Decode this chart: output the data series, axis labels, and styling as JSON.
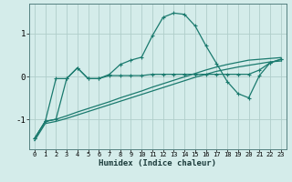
{
  "xlabel": "Humidex (Indice chaleur)",
  "x": [
    0,
    1,
    2,
    3,
    4,
    5,
    6,
    7,
    8,
    9,
    10,
    11,
    12,
    13,
    14,
    15,
    16,
    17,
    18,
    19,
    20,
    21,
    22,
    23
  ],
  "line1_peaked": [
    -1.45,
    -1.05,
    -1.0,
    -0.05,
    0.2,
    -0.05,
    -0.05,
    0.05,
    0.28,
    0.38,
    0.45,
    0.95,
    1.38,
    1.48,
    1.45,
    1.18,
    0.72,
    0.3,
    -0.12,
    -0.4,
    -0.5,
    0.02,
    0.32,
    0.4
  ],
  "line2_flat": [
    -1.45,
    -1.05,
    -0.05,
    -0.05,
    0.2,
    -0.05,
    -0.05,
    0.02,
    0.02,
    0.02,
    0.02,
    0.05,
    0.05,
    0.05,
    0.05,
    0.05,
    0.05,
    0.05,
    0.05,
    0.05,
    0.05,
    0.15,
    0.32,
    0.4
  ],
  "line3_diag1": [
    -1.45,
    -1.05,
    -1.0,
    -0.92,
    -0.83,
    -0.75,
    -0.67,
    -0.59,
    -0.5,
    -0.42,
    -0.34,
    -0.25,
    -0.17,
    -0.09,
    -0.01,
    0.07,
    0.15,
    0.22,
    0.28,
    0.33,
    0.38,
    0.4,
    0.42,
    0.44
  ],
  "line4_diag2": [
    -1.5,
    -1.1,
    -1.05,
    -0.98,
    -0.9,
    -0.82,
    -0.74,
    -0.66,
    -0.58,
    -0.5,
    -0.42,
    -0.34,
    -0.26,
    -0.18,
    -0.1,
    -0.02,
    0.05,
    0.12,
    0.17,
    0.22,
    0.26,
    0.3,
    0.34,
    0.36
  ],
  "bg_color": "#d4ecea",
  "grid_color": "#b0ceca",
  "line_color": "#1a7a6e",
  "xlim": [
    -0.5,
    23.5
  ],
  "ylim": [
    -1.7,
    1.7
  ],
  "yticks": [
    -1,
    0,
    1
  ],
  "xticks": [
    0,
    1,
    2,
    3,
    4,
    5,
    6,
    7,
    8,
    9,
    10,
    11,
    12,
    13,
    14,
    15,
    16,
    17,
    18,
    19,
    20,
    21,
    22,
    23
  ]
}
